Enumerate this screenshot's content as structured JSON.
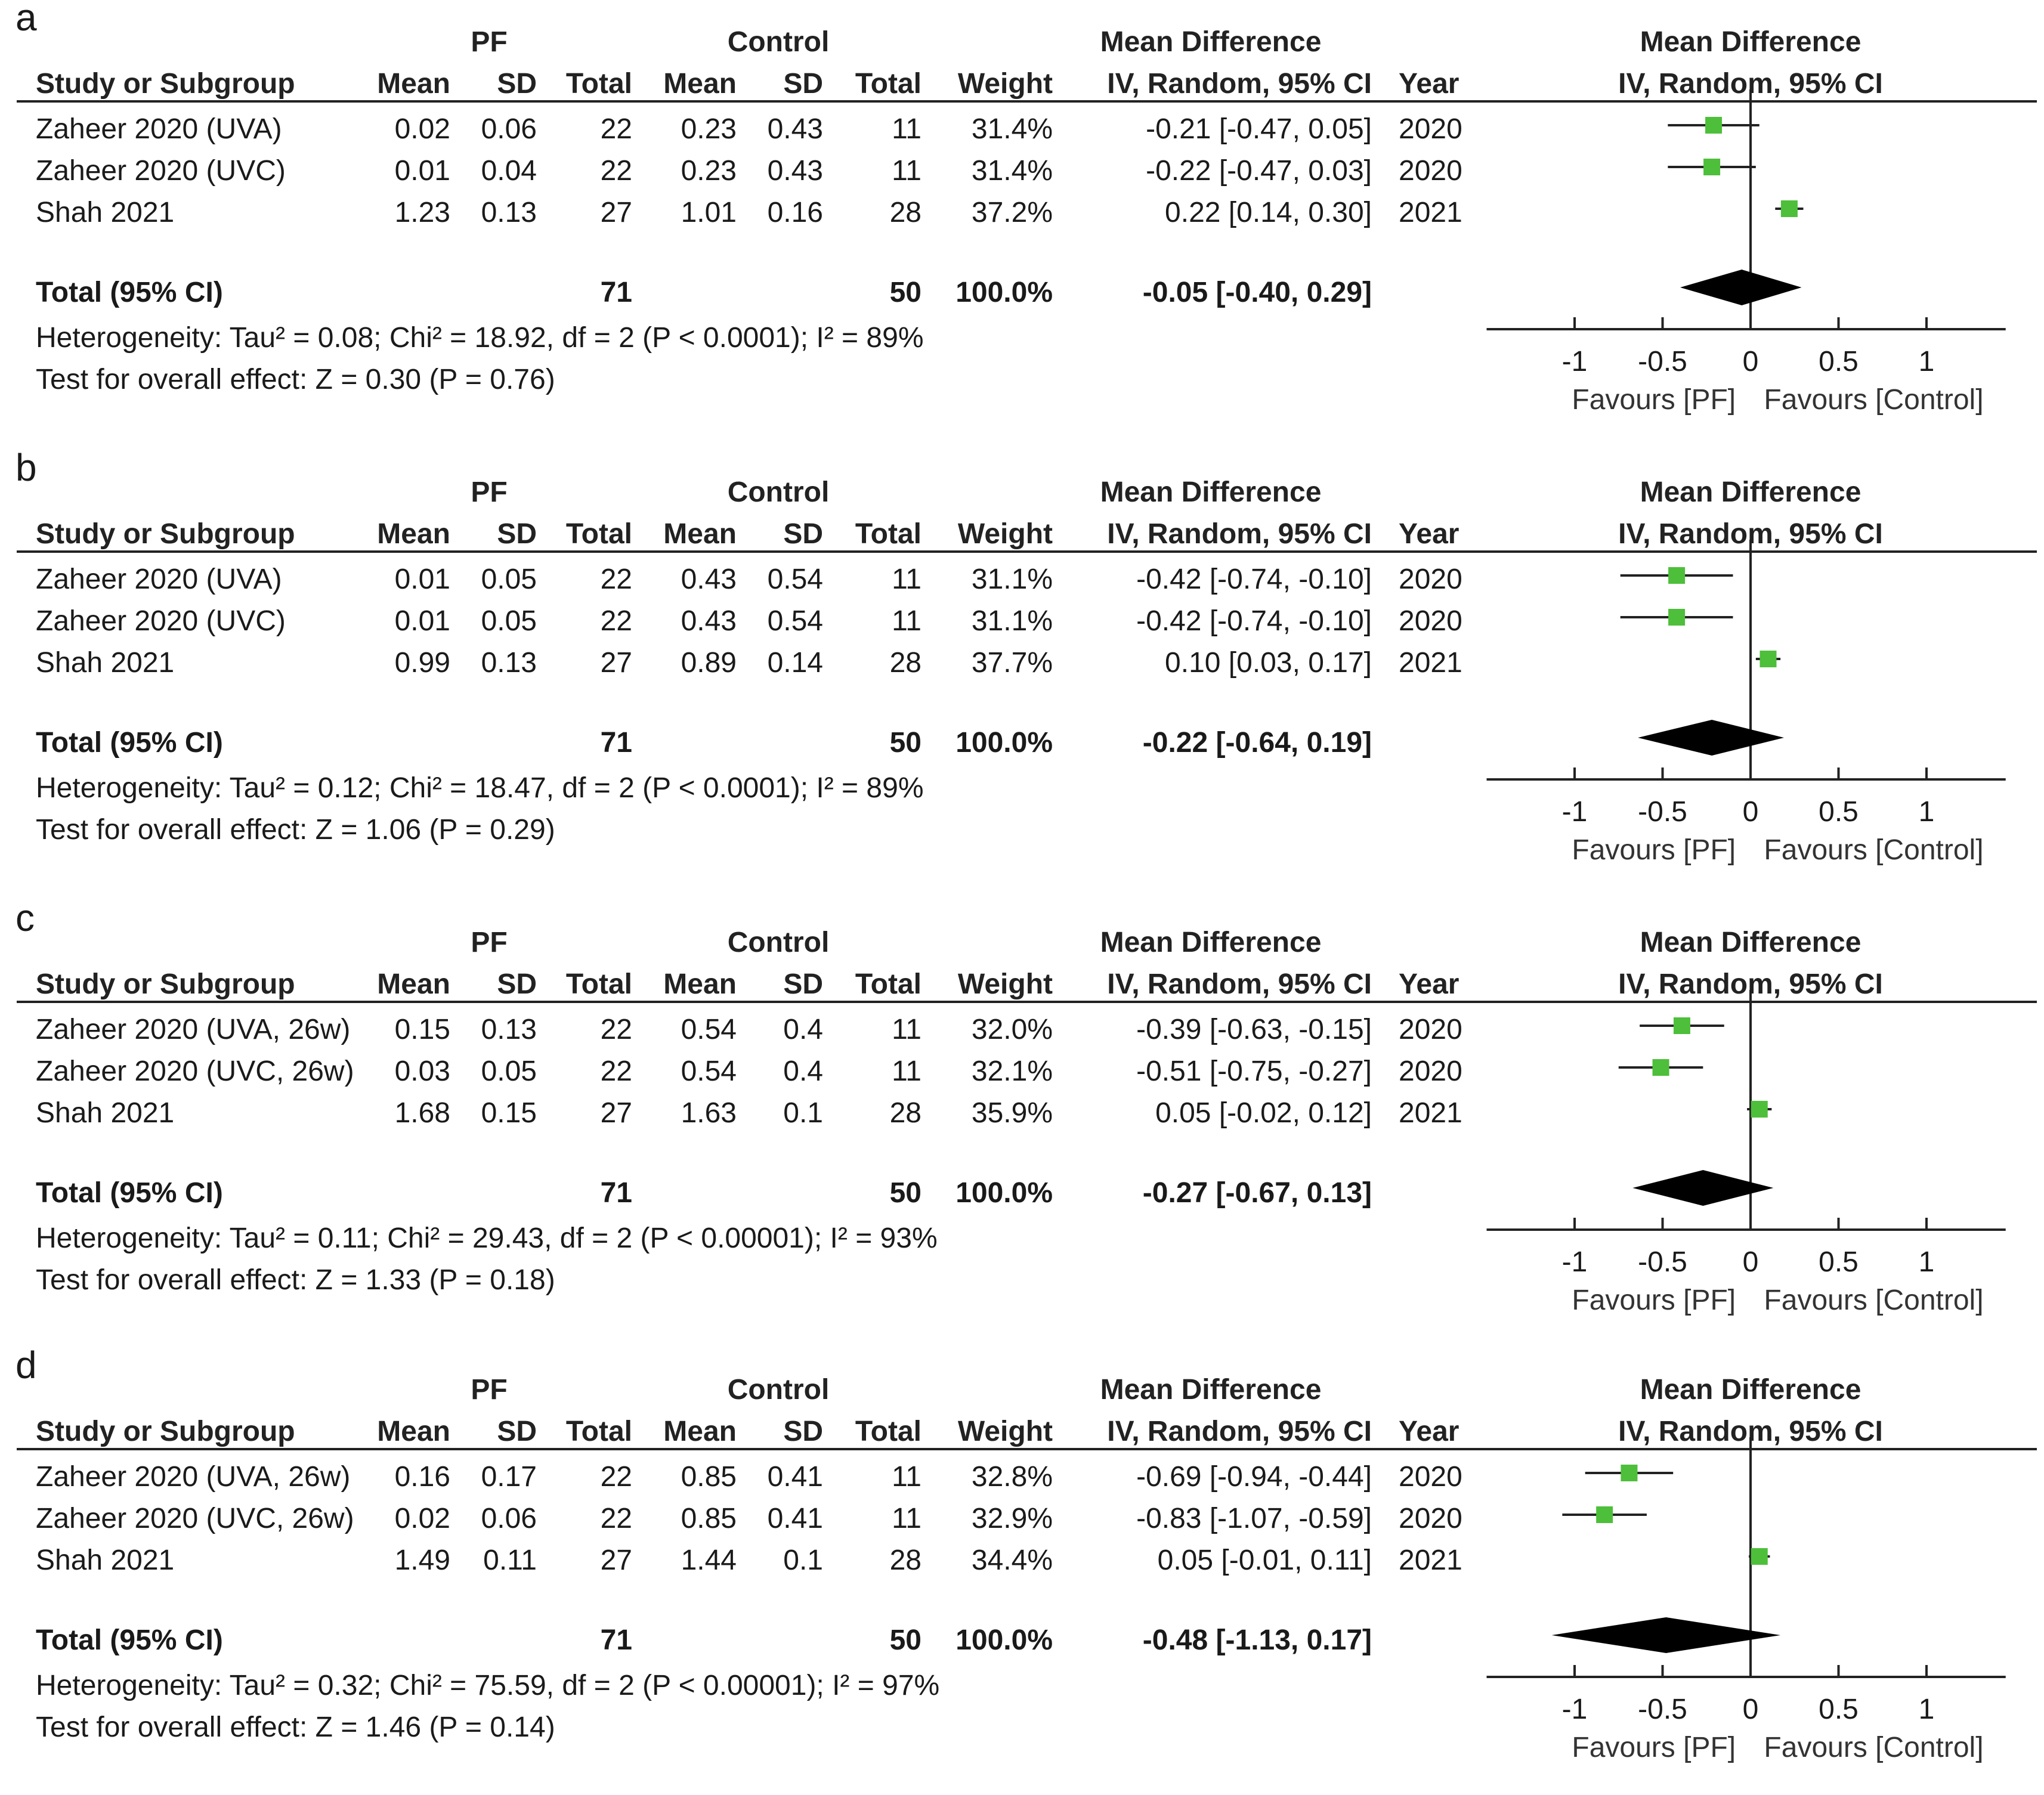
{
  "columns": {
    "study": "Study or Subgroup",
    "mean": "Mean",
    "sd": "SD",
    "total": "Total",
    "weight": "Weight",
    "md_ci": "IV, Random, 95% CI",
    "year": "Year"
  },
  "group_labels": {
    "experimental": "PF",
    "control": "Control",
    "mean_difference": "Mean Difference"
  },
  "total_label": "Total (95% CI)",
  "plot_header": {
    "title": "Mean Difference",
    "method": "IV, Random, 95% CI"
  },
  "axis_labels": {
    "favours_left": "Favours [PF]",
    "favours_right": "Favours [Control]"
  },
  "colors": {
    "square": "#4dbf3a",
    "diamond": "#000000",
    "line": "#222222"
  },
  "chart_data": [
    {
      "type": "forest",
      "panel": "a",
      "xlim": [
        -1,
        1
      ],
      "xticks": [
        -1,
        -0.5,
        0,
        0.5,
        1
      ],
      "tick_labels": [
        "-1",
        "-0.5",
        "0",
        "0.5",
        "1"
      ],
      "studies": [
        {
          "name": "Zaheer 2020 (UVA)",
          "pf_mean": "0.02",
          "pf_sd": "0.06",
          "pf_total": "22",
          "c_mean": "0.23",
          "c_sd": "0.43",
          "c_total": "11",
          "weight": "31.4%",
          "ci_text": "-0.21 [-0.47, 0.05]",
          "year": "2020",
          "md": -0.21,
          "lo": -0.47,
          "hi": 0.05
        },
        {
          "name": "Zaheer 2020 (UVC)",
          "pf_mean": "0.01",
          "pf_sd": "0.04",
          "pf_total": "22",
          "c_mean": "0.23",
          "c_sd": "0.43",
          "c_total": "11",
          "weight": "31.4%",
          "ci_text": "-0.22 [-0.47, 0.03]",
          "year": "2020",
          "md": -0.22,
          "lo": -0.47,
          "hi": 0.03
        },
        {
          "name": "Shah 2021",
          "pf_mean": "1.23",
          "pf_sd": "0.13",
          "pf_total": "27",
          "c_mean": "1.01",
          "c_sd": "0.16",
          "c_total": "28",
          "weight": "37.2%",
          "ci_text": "0.22 [0.14, 0.30]",
          "year": "2021",
          "md": 0.22,
          "lo": 0.14,
          "hi": 0.3
        }
      ],
      "total": {
        "pf_total": "71",
        "c_total": "50",
        "weight": "100.0%",
        "ci_text": "-0.05 [-0.40, 0.29]",
        "md": -0.05,
        "lo": -0.4,
        "hi": 0.29
      },
      "heterogeneity": "Heterogeneity: Tau² = 0.08; Chi² = 18.92, df = 2 (P < 0.0001); I² = 89%",
      "overall_effect": "Test for overall effect: Z = 0.30 (P = 0.76)"
    },
    {
      "type": "forest",
      "panel": "b",
      "xlim": [
        -1,
        1
      ],
      "xticks": [
        -1,
        -0.5,
        0,
        0.5,
        1
      ],
      "tick_labels": [
        "-1",
        "-0.5",
        "0",
        "0.5",
        "1"
      ],
      "studies": [
        {
          "name": "Zaheer 2020 (UVA)",
          "pf_mean": "0.01",
          "pf_sd": "0.05",
          "pf_total": "22",
          "c_mean": "0.43",
          "c_sd": "0.54",
          "c_total": "11",
          "weight": "31.1%",
          "ci_text": "-0.42 [-0.74, -0.10]",
          "year": "2020",
          "md": -0.42,
          "lo": -0.74,
          "hi": -0.1
        },
        {
          "name": "Zaheer 2020 (UVC)",
          "pf_mean": "0.01",
          "pf_sd": "0.05",
          "pf_total": "22",
          "c_mean": "0.43",
          "c_sd": "0.54",
          "c_total": "11",
          "weight": "31.1%",
          "ci_text": "-0.42 [-0.74, -0.10]",
          "year": "2020",
          "md": -0.42,
          "lo": -0.74,
          "hi": -0.1
        },
        {
          "name": "Shah 2021",
          "pf_mean": "0.99",
          "pf_sd": "0.13",
          "pf_total": "27",
          "c_mean": "0.89",
          "c_sd": "0.14",
          "c_total": "28",
          "weight": "37.7%",
          "ci_text": "0.10 [0.03, 0.17]",
          "year": "2021",
          "md": 0.1,
          "lo": 0.03,
          "hi": 0.17
        }
      ],
      "total": {
        "pf_total": "71",
        "c_total": "50",
        "weight": "100.0%",
        "ci_text": "-0.22 [-0.64, 0.19]",
        "md": -0.22,
        "lo": -0.64,
        "hi": 0.19
      },
      "heterogeneity": "Heterogeneity: Tau² = 0.12; Chi² = 18.47, df = 2 (P < 0.0001); I² = 89%",
      "overall_effect": "Test for overall effect: Z = 1.06 (P = 0.29)"
    },
    {
      "type": "forest",
      "panel": "c",
      "xlim": [
        -1,
        1
      ],
      "xticks": [
        -1,
        -0.5,
        0,
        0.5,
        1
      ],
      "tick_labels": [
        "-1",
        "-0.5",
        "0",
        "0.5",
        "1"
      ],
      "studies": [
        {
          "name": "Zaheer 2020 (UVA, 26w)",
          "pf_mean": "0.15",
          "pf_sd": "0.13",
          "pf_total": "22",
          "c_mean": "0.54",
          "c_sd": "0.4",
          "c_total": "11",
          "weight": "32.0%",
          "ci_text": "-0.39 [-0.63, -0.15]",
          "year": "2020",
          "md": -0.39,
          "lo": -0.63,
          "hi": -0.15
        },
        {
          "name": "Zaheer 2020 (UVC, 26w)",
          "pf_mean": "0.03",
          "pf_sd": "0.05",
          "pf_total": "22",
          "c_mean": "0.54",
          "c_sd": "0.4",
          "c_total": "11",
          "weight": "32.1%",
          "ci_text": "-0.51 [-0.75, -0.27]",
          "year": "2020",
          "md": -0.51,
          "lo": -0.75,
          "hi": -0.27
        },
        {
          "name": "Shah 2021",
          "pf_mean": "1.68",
          "pf_sd": "0.15",
          "pf_total": "27",
          "c_mean": "1.63",
          "c_sd": "0.1",
          "c_total": "28",
          "weight": "35.9%",
          "ci_text": "0.05 [-0.02, 0.12]",
          "year": "2021",
          "md": 0.05,
          "lo": -0.02,
          "hi": 0.12
        }
      ],
      "total": {
        "pf_total": "71",
        "c_total": "50",
        "weight": "100.0%",
        "ci_text": "-0.27 [-0.67, 0.13]",
        "md": -0.27,
        "lo": -0.67,
        "hi": 0.13
      },
      "heterogeneity": "Heterogeneity: Tau² = 0.11; Chi² = 29.43, df = 2 (P < 0.00001); I² = 93%",
      "overall_effect": "Test for overall effect: Z = 1.33 (P = 0.18)"
    },
    {
      "type": "forest",
      "panel": "d",
      "xlim": [
        -1,
        1
      ],
      "xticks": [
        -1,
        -0.5,
        0,
        0.5,
        1
      ],
      "tick_labels": [
        "-1",
        "-0.5",
        "0",
        "0.5",
        "1"
      ],
      "studies": [
        {
          "name": "Zaheer 2020 (UVA, 26w)",
          "pf_mean": "0.16",
          "pf_sd": "0.17",
          "pf_total": "22",
          "c_mean": "0.85",
          "c_sd": "0.41",
          "c_total": "11",
          "weight": "32.8%",
          "ci_text": "-0.69 [-0.94, -0.44]",
          "year": "2020",
          "md": -0.69,
          "lo": -0.94,
          "hi": -0.44
        },
        {
          "name": "Zaheer 2020 (UVC, 26w)",
          "pf_mean": "0.02",
          "pf_sd": "0.06",
          "pf_total": "22",
          "c_mean": "0.85",
          "c_sd": "0.41",
          "c_total": "11",
          "weight": "32.9%",
          "ci_text": "-0.83 [-1.07, -0.59]",
          "year": "2020",
          "md": -0.83,
          "lo": -1.07,
          "hi": -0.59
        },
        {
          "name": "Shah 2021",
          "pf_mean": "1.49",
          "pf_sd": "0.11",
          "pf_total": "27",
          "c_mean": "1.44",
          "c_sd": "0.1",
          "c_total": "28",
          "weight": "34.4%",
          "ci_text": "0.05 [-0.01, 0.11]",
          "year": "2021",
          "md": 0.05,
          "lo": -0.01,
          "hi": 0.11
        }
      ],
      "total": {
        "pf_total": "71",
        "c_total": "50",
        "weight": "100.0%",
        "ci_text": "-0.48 [-1.13, 0.17]",
        "md": -0.48,
        "lo": -1.13,
        "hi": 0.17
      },
      "heterogeneity": "Heterogeneity: Tau² = 0.32; Chi² = 75.59, df = 2 (P < 0.00001); I² = 97%",
      "overall_effect": "Test for overall effect: Z = 1.46 (P = 0.14)"
    }
  ]
}
